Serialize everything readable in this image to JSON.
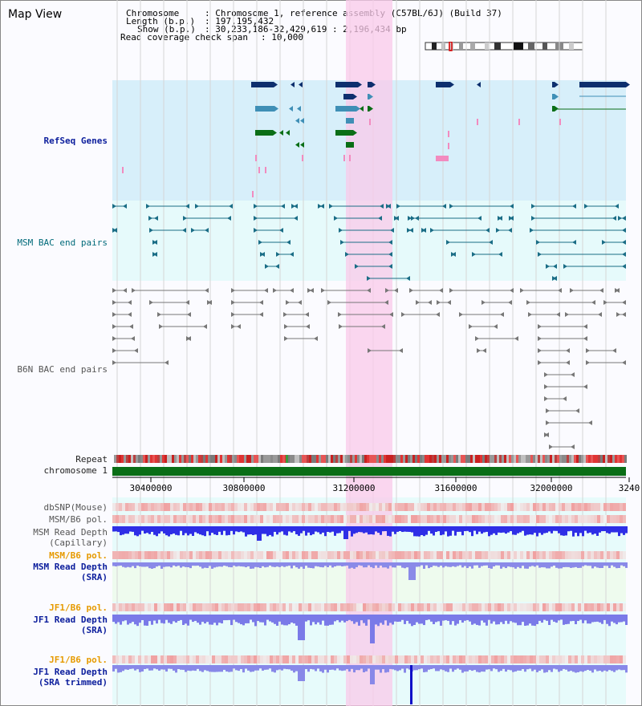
{
  "title": "Map View",
  "info": {
    "chromosome_key": "Chromosome",
    "chromosome_value": ": Chromosome 1, reference assembly (C57BL/6J) (Build 37)",
    "length_key": "Length (b.p.)",
    "length_value": ": 197,195,432",
    "show_key": "Show (b.p.)",
    "show_value": ": 30,233,186-32,429,619 : 2,196,434 bp",
    "coverage_key": "Read coverage check span",
    "coverage_value": ": 10,000"
  },
  "tracks": {
    "refseq": "RefSeq Genes",
    "msm_bac": "MSM BAC end pairs",
    "b6n_bac": "B6N BAC end pairs",
    "repeat": "Repeat",
    "chromosome": "chromosome 1",
    "dbsnp": "dbSNP(Mouse)",
    "msm_b6_pol": "MSM/B6 pol.",
    "msm_read_depth_cap_1": "MSM Read Depth",
    "msm_read_depth_cap_2": "(Capillary)",
    "msm_b6_pol_2": "MSM/B6 pol.",
    "msm_read_depth_sra_1": "MSM Read Depth",
    "msm_read_depth_sra_2": "(SRA)",
    "jf1_b6_pol": "JF1/B6 pol.",
    "jf1_read_depth_1": "JF1 Read Depth",
    "jf1_read_depth_2": "(SRA)",
    "jf1_b6_pol_2": "JF1/B6 pol.",
    "jf1_trim_1": "JF1 Read Depth",
    "jf1_trim_2": "(SRA trimmed)"
  },
  "ruler": {
    "ticks": [
      "30400000",
      "30800000",
      "31200000",
      "31600000",
      "32000000",
      "3240"
    ]
  },
  "colors": {
    "highlight": "#f9c9ea",
    "refseq_bg": "#d7effa",
    "msm_bg": "#e6fafb",
    "gene_dark": "#0d2f6e",
    "gene_teal": "#3f8fb6",
    "gene_green": "#0a6e16",
    "bac_teal": "#1a6d86",
    "bac_gray": "#777777",
    "chromosome_green": "#0a6e16"
  }
}
